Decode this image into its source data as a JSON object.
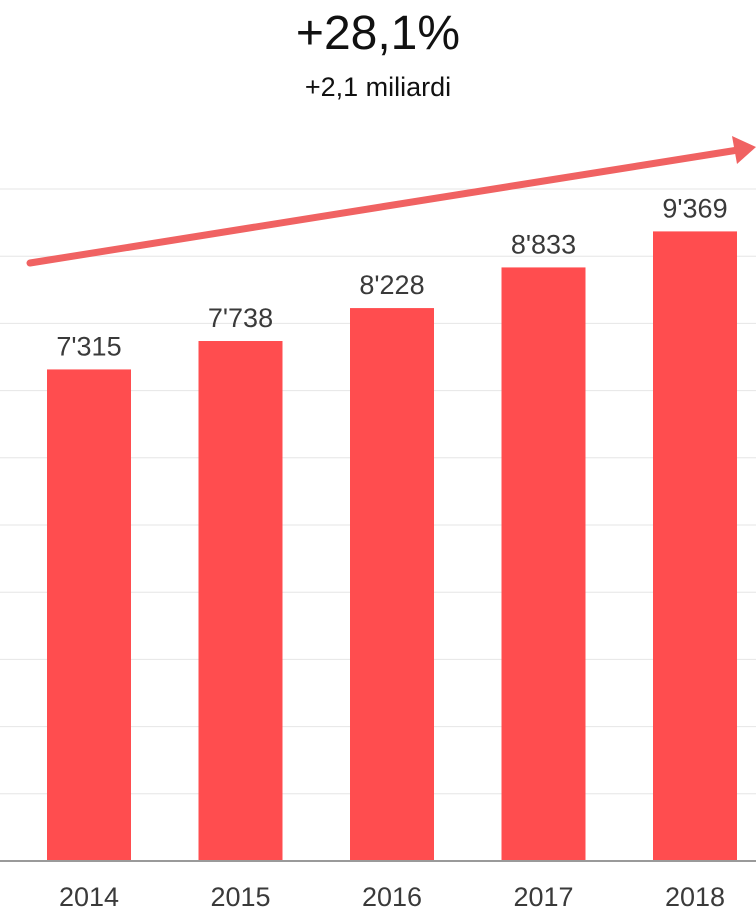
{
  "headline": {
    "growth_percent": "+28,1%",
    "growth_absolute": "+2,1 miliardi"
  },
  "colors": {
    "bar": "#ff4d4f",
    "trend_arrow": "#f06262",
    "gridline": "#e6e6e6",
    "axis": "#9a9a9a",
    "text": "#3a3a3a"
  },
  "chart_data": {
    "type": "bar",
    "categories": [
      "2014",
      "2015",
      "2016",
      "2017",
      "2018"
    ],
    "values": [
      7315,
      7738,
      8228,
      8833,
      9369
    ],
    "value_labels": [
      "7'315",
      "7'738",
      "8'228",
      "8'833",
      "9'369"
    ],
    "title": "",
    "xlabel": "",
    "ylabel": "",
    "ylim": [
      0,
      10000
    ],
    "grid": true,
    "legend": "none",
    "annotations": [
      "upward trend arrow above bars"
    ]
  }
}
